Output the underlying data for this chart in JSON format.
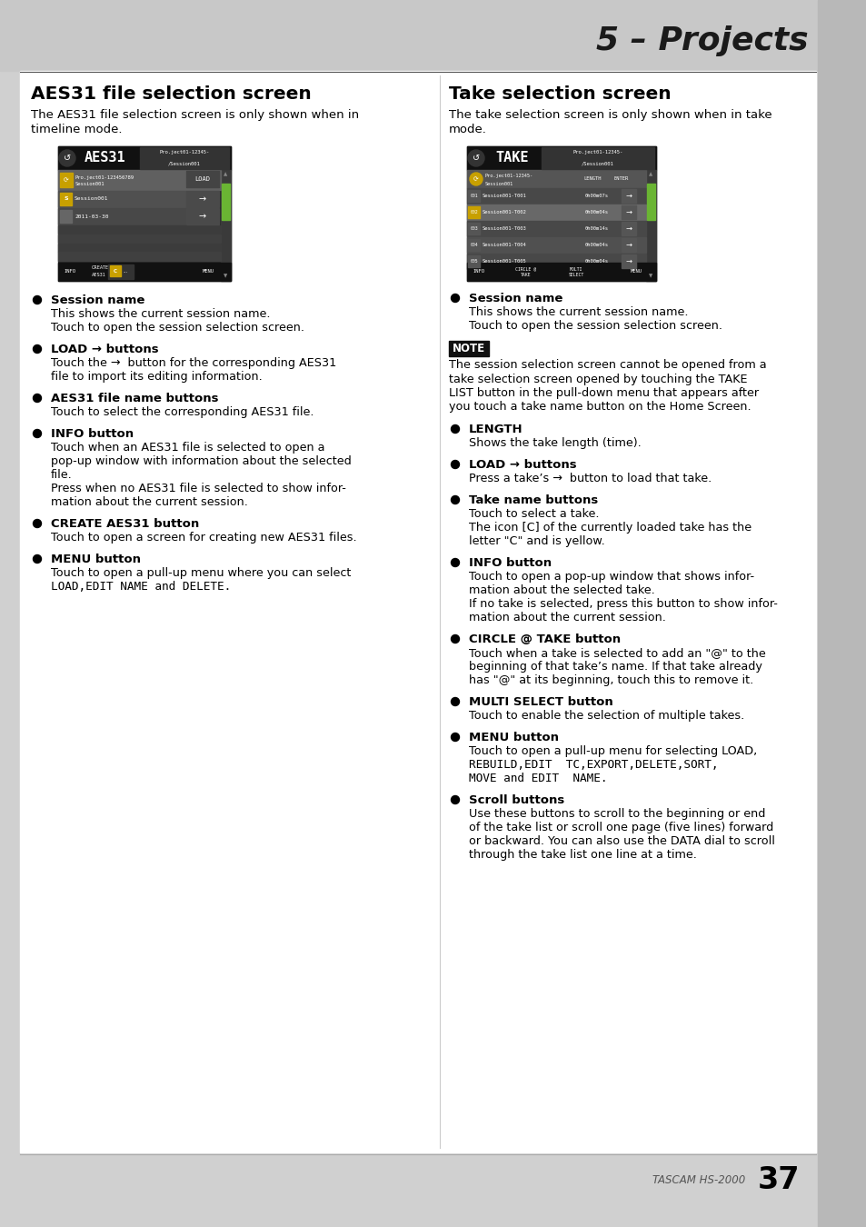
{
  "page_bg": "#d0d0d0",
  "content_bg": "#ffffff",
  "header_bg": "#c8c8c8",
  "header_title": "5 – Projects",
  "left_section_title": "AES31 file selection screen",
  "right_section_title": "Take selection screen",
  "left_intro_lines": [
    "The AES31 file selection screen is only shown when in",
    "timeline mode."
  ],
  "right_intro_lines": [
    "The take selection screen is only shown when in take",
    "mode."
  ],
  "note_lines": [
    "The session selection screen cannot be opened from a",
    "take selection screen opened by touching the TAKE",
    "LIST button in the pull-down menu that appears after",
    "you touch a take name button on the Home Screen."
  ],
  "left_bullets": [
    {
      "title": "Session name",
      "body_lines": [
        {
          "text": "This shows the current session name.",
          "mono": false
        },
        {
          "text": "Touch to open the session selection screen.",
          "mono": false
        }
      ]
    },
    {
      "title": "LOAD → buttons",
      "body_lines": [
        {
          "text": "Touch the →  button for the corresponding AES31",
          "mono": false
        },
        {
          "text": "file to import its editing information.",
          "mono": false
        }
      ]
    },
    {
      "title": "AES31 file name buttons",
      "body_lines": [
        {
          "text": "Touch to select the corresponding AES31 file.",
          "mono": false
        }
      ]
    },
    {
      "title": "INFO button",
      "body_lines": [
        {
          "text": "Touch when an AES31 file is selected to open a",
          "mono": false
        },
        {
          "text": "pop-up window with information about the selected",
          "mono": false
        },
        {
          "text": "file.",
          "mono": false
        },
        {
          "text": "Press when no AES31 file is selected to show infor-",
          "mono": false
        },
        {
          "text": "mation about the current session.",
          "mono": false
        }
      ]
    },
    {
      "title": "CREATE AES31 button",
      "body_lines": [
        {
          "text": "Touch to open a screen for creating new AES31 files.",
          "mono": false
        }
      ]
    },
    {
      "title": "MENU button",
      "body_lines": [
        {
          "text": "Touch to open a pull-up menu where you can select",
          "mono": false
        },
        {
          "text": "LOAD,EDIT NAME and DELETE.",
          "mono": true
        }
      ]
    }
  ],
  "right_bullets": [
    {
      "title": "Session name",
      "body_lines": [
        {
          "text": "This shows the current session name.",
          "mono": false
        },
        {
          "text": "Touch to open the session selection screen.",
          "mono": false
        }
      ]
    },
    {
      "title": "LENGTH",
      "body_lines": [
        {
          "text": "Shows the take length (time).",
          "mono": false
        }
      ]
    },
    {
      "title": "LOAD → buttons",
      "body_lines": [
        {
          "text": "Press a take’s →  button to load that take.",
          "mono": false
        }
      ]
    },
    {
      "title": "Take name buttons",
      "body_lines": [
        {
          "text": "Touch to select a take.",
          "mono": false
        },
        {
          "text": "The icon [C] of the currently loaded take has the",
          "mono": false
        },
        {
          "text": "letter \"C\" and is yellow.",
          "mono": false
        }
      ]
    },
    {
      "title": "INFO button",
      "body_lines": [
        {
          "text": "Touch to open a pop-up window that shows infor-",
          "mono": false
        },
        {
          "text": "mation about the selected take.",
          "mono": false
        },
        {
          "text": "If no take is selected, press this button to show infor-",
          "mono": false
        },
        {
          "text": "mation about the current session.",
          "mono": false
        }
      ]
    },
    {
      "title": "CIRCLE @ TAKE button",
      "body_lines": [
        {
          "text": "Touch when a take is selected to add an \"@\" to the",
          "mono": false
        },
        {
          "text": "beginning of that take’s name. If that take already",
          "mono": false
        },
        {
          "text": "has \"@\" at its beginning, touch this to remove it.",
          "mono": false
        }
      ]
    },
    {
      "title": "MULTI SELECT button",
      "body_lines": [
        {
          "text": "Touch to enable the selection of multiple takes.",
          "mono": false
        }
      ]
    },
    {
      "title": "MENU button",
      "body_lines": [
        {
          "text": "Touch to open a pull-up menu for selecting LOAD,",
          "mono": false
        },
        {
          "text": "REBUILD,EDIT  TC,EXPORT,DELETE,SORT,",
          "mono": true
        },
        {
          "text": "MOVE and EDIT  NAME.",
          "mono": true
        }
      ]
    },
    {
      "title": "Scroll buttons",
      "body_lines": [
        {
          "text": "Use these buttons to scroll to the beginning or end",
          "mono": false
        },
        {
          "text": "of the take list or scroll one page (five lines) forward",
          "mono": false
        },
        {
          "text": "or backward. You can also use the DATA dial to scroll",
          "mono": false
        },
        {
          "text": "through the take list one line at a time.",
          "mono": false
        }
      ]
    }
  ],
  "footer_label": "TASCAM HS-2000",
  "page_num": "37"
}
